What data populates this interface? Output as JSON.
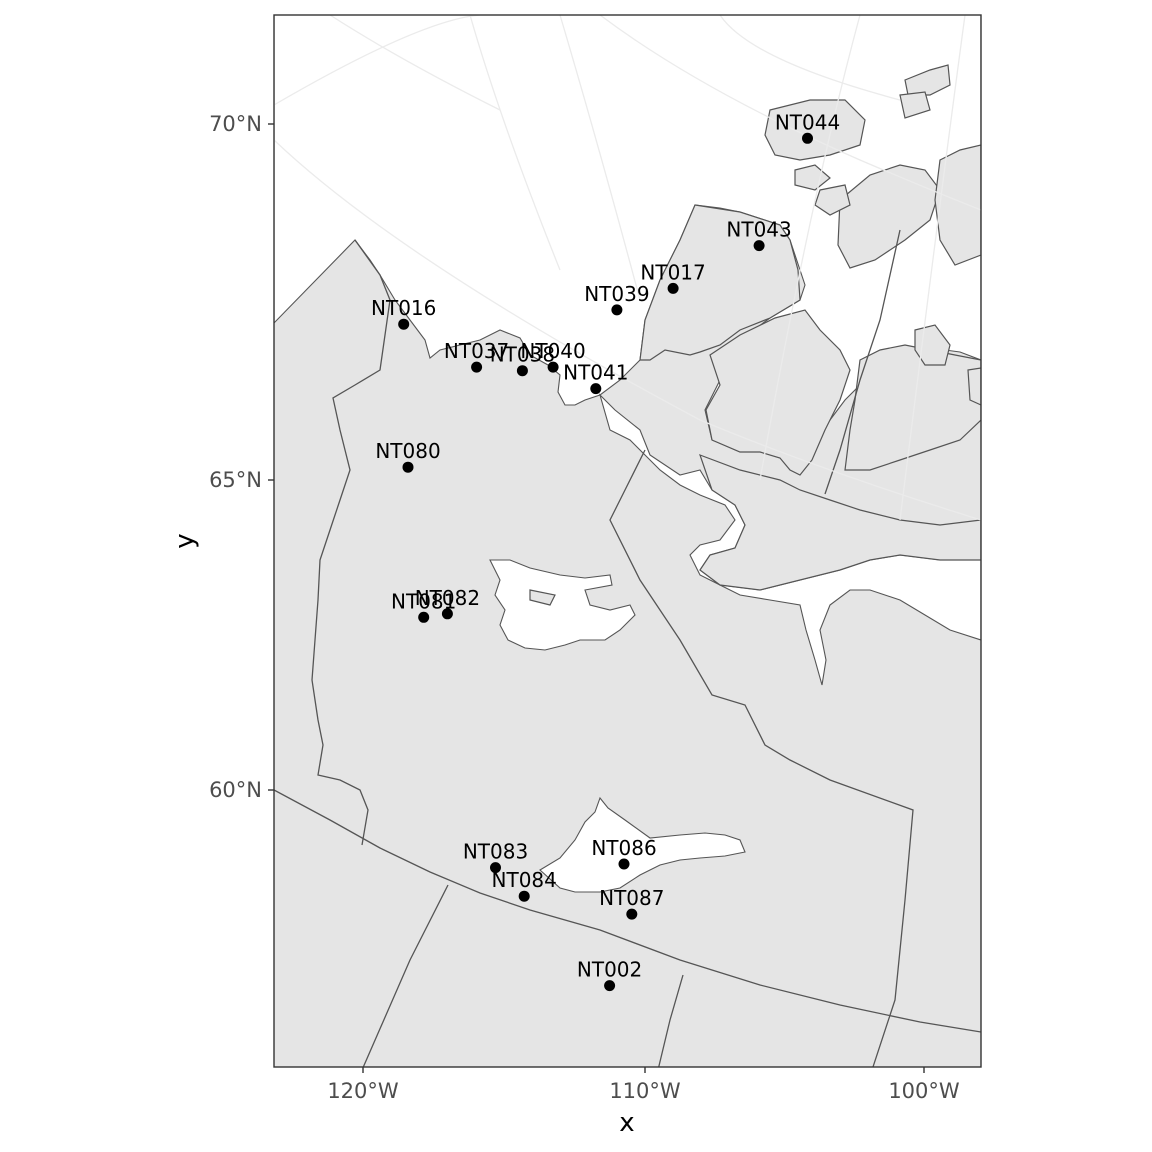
{
  "axes": {
    "x_title": "x",
    "y_title": "y",
    "x_ticks": [
      {
        "label": "120°W",
        "lon": -120
      },
      {
        "label": "110°W",
        "lon": -110
      },
      {
        "label": "100°W",
        "lon": -100
      }
    ],
    "y_ticks": [
      {
        "label": "70°N",
        "lat": 70
      },
      {
        "label": "65°N",
        "lat": 65
      },
      {
        "label": "60°N",
        "lat": 60
      }
    ]
  },
  "map": {
    "land_color": "#e5e5e5",
    "water_color": "#ffffff",
    "border_color": "#555555",
    "graticule_color": "#ebebeb",
    "point_color": "#000000"
  },
  "stations": [
    {
      "id": "NT044",
      "lon": -104.6,
      "lat": 69.8
    },
    {
      "id": "NT043",
      "lon": -106.6,
      "lat": 68.3
    },
    {
      "id": "NT017",
      "lon": -109.6,
      "lat": 67.7
    },
    {
      "id": "NT039",
      "lon": -111.5,
      "lat": 67.4
    },
    {
      "id": "NT016",
      "lon": -118.6,
      "lat": 67.2
    },
    {
      "id": "NT037",
      "lon": -116.1,
      "lat": 66.6
    },
    {
      "id": "NT038",
      "lon": -114.6,
      "lat": 66.55
    },
    {
      "id": "NT040",
      "lon": -113.6,
      "lat": 66.6
    },
    {
      "id": "NT041",
      "lon": -112.2,
      "lat": 66.3
    },
    {
      "id": "NT080",
      "lon": -118.1,
      "lat": 65.2
    },
    {
      "id": "NT081",
      "lon": -117.3,
      "lat": 63.1
    },
    {
      "id": "NT082",
      "lon": -116.6,
      "lat": 63.15
    },
    {
      "id": "NT083",
      "lon": -114.9,
      "lat": 59.6
    },
    {
      "id": "NT086",
      "lon": -111.4,
      "lat": 59.65
    },
    {
      "id": "NT084",
      "lon": -114.1,
      "lat": 59.2
    },
    {
      "id": "NT087",
      "lon": -111.2,
      "lat": 58.95
    },
    {
      "id": "NT002",
      "lon": -111.8,
      "lat": 57.95
    }
  ]
}
